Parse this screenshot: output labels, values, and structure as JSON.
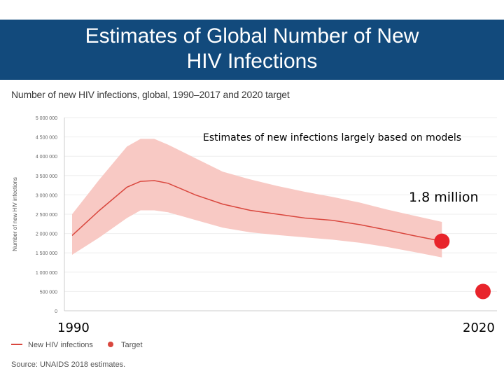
{
  "slide": {
    "title_line1": "Estimates of Global Number of New",
    "title_line2": "HIV Infections",
    "source": "Source: UNAIDS 2018 estimates."
  },
  "chart_data": {
    "type": "line",
    "title": "Number of new HIV infections, global, 1990–2017 and 2020 target",
    "ylabel": "Number of new HIV infections",
    "xlabel": "",
    "xlim": [
      1990,
      2020
    ],
    "ylim": [
      0,
      5000000
    ],
    "y_ticks": [
      0,
      500000,
      1000000,
      1500000,
      2000000,
      2500000,
      3000000,
      3500000,
      4000000,
      4500000,
      5000000
    ],
    "y_tick_labels": [
      "0",
      "500 000",
      "1 000 000",
      "1 500 000",
      "2 000 000",
      "2 500 000",
      "3 000 000",
      "3 500 000",
      "4 000 000",
      "4 500 000",
      "5 000 000"
    ],
    "x_tick_labels": [
      "1990",
      "2020"
    ],
    "series": [
      {
        "name": "New HIV infections",
        "color": "#d9473e",
        "x": [
          1990,
          1992,
          1994,
          1995,
          1996,
          1997,
          1999,
          2001,
          2003,
          2005,
          2007,
          2009,
          2011,
          2013,
          2015,
          2017
        ],
        "values": [
          1950000,
          2600000,
          3200000,
          3350000,
          3370000,
          3300000,
          3000000,
          2760000,
          2600000,
          2500000,
          2400000,
          2340000,
          2230000,
          2090000,
          1940000,
          1800000
        ],
        "lower": [
          1450000,
          1900000,
          2400000,
          2600000,
          2600000,
          2550000,
          2350000,
          2150000,
          2030000,
          1960000,
          1900000,
          1840000,
          1760000,
          1650000,
          1520000,
          1380000
        ],
        "upper": [
          2500000,
          3400000,
          4250000,
          4450000,
          4450000,
          4300000,
          3950000,
          3600000,
          3400000,
          3230000,
          3080000,
          2950000,
          2800000,
          2620000,
          2460000,
          2300000
        ]
      }
    ],
    "target": {
      "name": "Target",
      "x": 2020,
      "value": 500000,
      "color": "#e8242b"
    },
    "estimate_2017": {
      "x": 2017,
      "value": 1800000,
      "color": "#e8242b"
    },
    "legend": [
      "New HIV infections",
      "Target"
    ],
    "legend_position": "bottom-left",
    "annotations": {
      "models": "Estimates of new infections largely based on models",
      "value": "1.8 million",
      "year_start": "1990",
      "year_end": "2020"
    }
  }
}
